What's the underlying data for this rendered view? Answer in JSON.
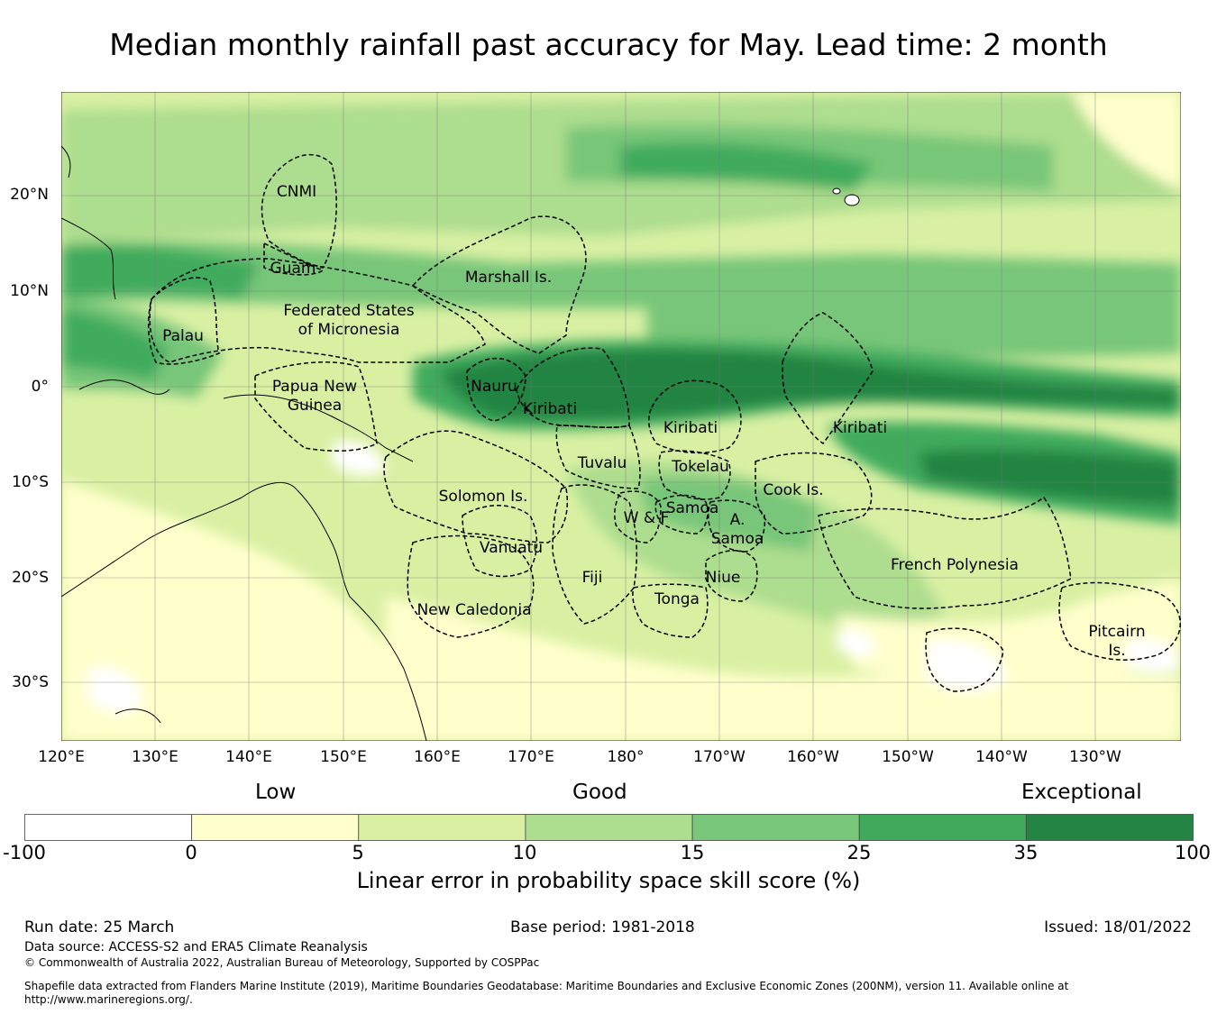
{
  "title": "Median monthly rainfall past accuracy for May. Lead time: 2 month",
  "map": {
    "lat_ticks": [
      "20°N",
      "10°N",
      "0°",
      "10°S",
      "20°S",
      "30°S"
    ],
    "lon_ticks": [
      "120°E",
      "130°E",
      "140°E",
      "150°E",
      "160°E",
      "170°E",
      "180°",
      "170°W",
      "160°W",
      "150°W",
      "140°W",
      "130°W"
    ],
    "regions": [
      [
        "CNMI"
      ],
      [
        "Guam"
      ],
      [
        "Marshall Is."
      ],
      [
        "Federated States",
        "of Micronesia"
      ],
      [
        "Palau"
      ],
      [
        "Papua New",
        "Guinea"
      ],
      [
        "Nauru"
      ],
      [
        "Kiribati"
      ],
      [
        "Kiribati"
      ],
      [
        "Kiribati"
      ],
      [
        "Tuvalu"
      ],
      [
        "Tokelau"
      ],
      [
        "Solomon Is."
      ],
      [
        "Cook Is."
      ],
      [
        "Samoa"
      ],
      [
        "W & F"
      ],
      [
        "A.",
        "Samoa"
      ],
      [
        "Vanuatu"
      ],
      [
        "French Polynesia"
      ],
      [
        "Fiji"
      ],
      [
        "Niue"
      ],
      [
        "Tonga"
      ],
      [
        "New Caledonia"
      ],
      [
        "Pitcairn",
        "Is."
      ]
    ]
  },
  "legend": {
    "categories": [
      "Low",
      "Good",
      "Exceptional"
    ],
    "ticks": [
      "-100",
      "0",
      "5",
      "10",
      "15",
      "25",
      "35",
      "100"
    ],
    "colors": [
      "#ffffff",
      "#ffffcc",
      "#d9f0a3",
      "#addd8e",
      "#78c679",
      "#41ab5d",
      "#238443"
    ],
    "title": "Linear error in probability space skill score (%)"
  },
  "footer": {
    "run_date": "Run date: 25 March",
    "base_period": "Base period: 1981-2018",
    "issued": "Issued: 18/01/2022",
    "data_source": "Data source: ACCESS-S2 and ERA5 Climate Reanalysis",
    "copyright": "© Commonwealth of Australia 2022, Australian Bureau of Meteorology, Supported by COSPPac",
    "shapefile_line1": "Shapefile data extracted from Flanders Marine Institute (2019), Maritime Boundaries Geodatabase: Maritime Boundaries and Exclusive Economic Zones (200NM), version 11. Available online at",
    "shapefile_line2": "http://www.marineregions.org/."
  }
}
